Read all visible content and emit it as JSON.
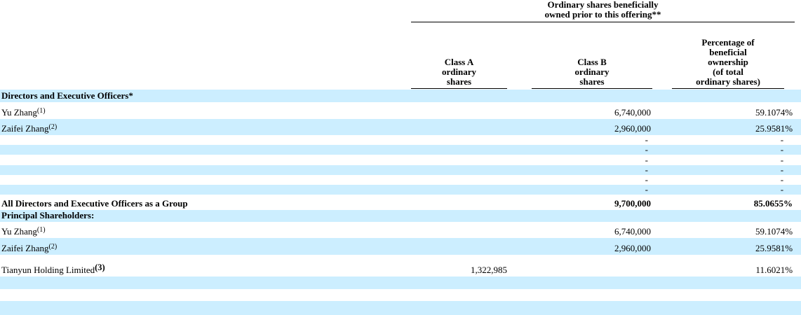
{
  "table": {
    "span_header": {
      "line1": "Ordinary shares beneficially",
      "line2": "owned prior to this offering**"
    },
    "columns": {
      "class_a": {
        "l1": "Class A",
        "l2": "ordinary",
        "l3": "shares"
      },
      "class_b": {
        "l1": "Class B",
        "l2": "ordinary",
        "l3": "shares"
      },
      "pct": {
        "l1": "Percentage of",
        "l2": "beneficial",
        "l3": "ownership",
        "l4": "(of total",
        "l5": "ordinary shares)"
      }
    },
    "highlight_color": "#cceeff",
    "rows": [
      {
        "name": "Directors and Executive Officers*",
        "sup": "",
        "class_a": "",
        "class_b": "",
        "pct": ""
      },
      {
        "name": "Yu Zhang",
        "sup": "(1)",
        "class_a": "",
        "class_b": "6,740,000",
        "pct": "59.1074%"
      },
      {
        "name": "Zaifei Zhang",
        "sup": "(2)",
        "class_a": "",
        "class_b": "2,960,000",
        "pct": "25.9581%"
      },
      {
        "name": "",
        "sup": "",
        "class_a": "",
        "class_b": "-",
        "pct": "-"
      },
      {
        "name": "",
        "sup": "",
        "class_a": "",
        "class_b": "-",
        "pct": "-"
      },
      {
        "name": "",
        "sup": "",
        "class_a": "",
        "class_b": "-",
        "pct": "-"
      },
      {
        "name": "",
        "sup": "",
        "class_a": "",
        "class_b": "-",
        "pct": "-"
      },
      {
        "name": "",
        "sup": "",
        "class_a": "",
        "class_b": "-",
        "pct": "-"
      },
      {
        "name": "",
        "sup": "",
        "class_a": "",
        "class_b": "-",
        "pct": "-"
      },
      {
        "name": "All Directors and Executive Officers as a Group",
        "sup": "",
        "class_a": "",
        "class_b": "9,700,000",
        "pct": "85.0655%"
      },
      {
        "name": "Principal Shareholders:",
        "sup": "",
        "class_a": "",
        "class_b": "",
        "pct": ""
      },
      {
        "name": "Yu Zhang",
        "sup": "(1)",
        "class_a": "",
        "class_b": "6,740,000",
        "pct": "59.1074%"
      },
      {
        "name": "Zaifei Zhang",
        "sup": "(2)",
        "class_a": "",
        "class_b": "2,960,000",
        "pct": "25.9581%"
      },
      {
        "name": "Tianyun Holding Limited",
        "sup": "(3)",
        "class_a": "1,322,985",
        "class_b": "",
        "pct": "11.6021%"
      },
      {
        "name": "",
        "sup": "",
        "class_a": "",
        "class_b": "",
        "pct": ""
      },
      {
        "name": "",
        "sup": "",
        "class_a": "",
        "class_b": "",
        "pct": ""
      },
      {
        "name": "",
        "sup": "",
        "class_a": "",
        "class_b": "",
        "pct": ""
      }
    ]
  }
}
